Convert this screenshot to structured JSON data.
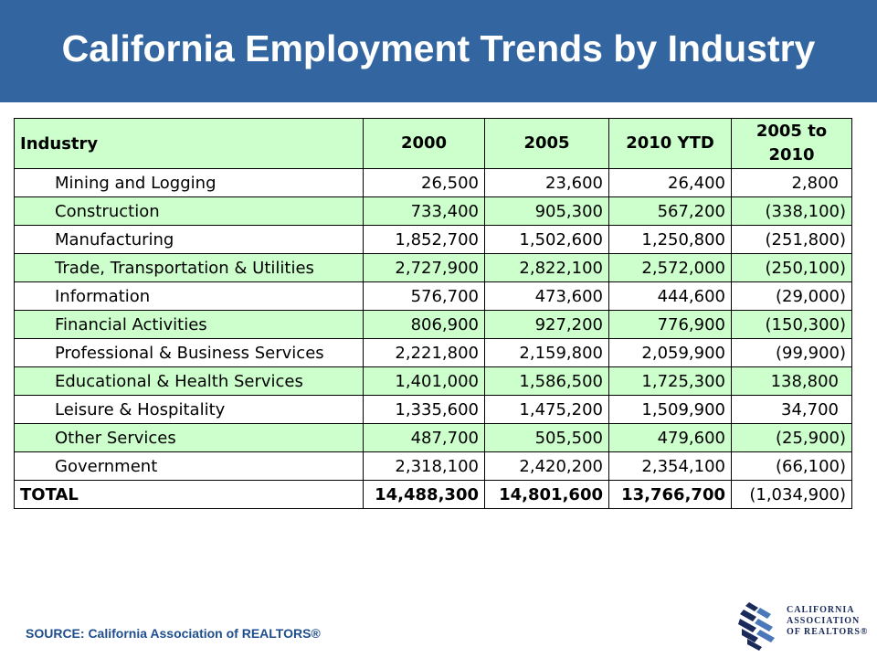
{
  "title": "California Employment Trends by Industry",
  "table": {
    "headers": {
      "industry": "Industry",
      "y2000": "2000",
      "y2005": "2005",
      "y2010": "2010 YTD",
      "change_line1": "2005 to",
      "change_line2": "2010"
    },
    "rows": [
      {
        "industry": "Mining and Logging",
        "y2000": "26,500",
        "y2005": "23,600",
        "y2010": "26,400",
        "change": "2,800"
      },
      {
        "industry": "Construction",
        "y2000": "733,400",
        "y2005": "905,300",
        "y2010": "567,200",
        "change": "(338,100)"
      },
      {
        "industry": "Manufacturing",
        "y2000": "1,852,700",
        "y2005": "1,502,600",
        "y2010": "1,250,800",
        "change": "(251,800)"
      },
      {
        "industry": "Trade, Transportation & Utilities",
        "y2000": "2,727,900",
        "y2005": "2,822,100",
        "y2010": "2,572,000",
        "change": "(250,100)"
      },
      {
        "industry": "Information",
        "y2000": "576,700",
        "y2005": "473,600",
        "y2010": "444,600",
        "change": "(29,000)"
      },
      {
        "industry": "Financial Activities",
        "y2000": "806,900",
        "y2005": "927,200",
        "y2010": "776,900",
        "change": "(150,300)"
      },
      {
        "industry": "Professional & Business Services",
        "y2000": "2,221,800",
        "y2005": "2,159,800",
        "y2010": "2,059,900",
        "change": "(99,900)"
      },
      {
        "industry": "Educational & Health Services",
        "y2000": "1,401,000",
        "y2005": "1,586,500",
        "y2010": "1,725,300",
        "change": "138,800"
      },
      {
        "industry": "Leisure & Hospitality",
        "y2000": "1,335,600",
        "y2005": "1,475,200",
        "y2010": "1,509,900",
        "change": "34,700"
      },
      {
        "industry": "Other Services",
        "y2000": "487,700",
        "y2005": "505,500",
        "y2010": "479,600",
        "change": "(25,900)"
      },
      {
        "industry": "Government",
        "y2000": "2,318,100",
        "y2005": "2,420,200",
        "y2010": "2,354,100",
        "change": "(66,100)"
      }
    ],
    "total": {
      "industry": "TOTAL",
      "y2000": "14,488,300",
      "y2005": "14,801,600",
      "y2010": "13,766,700",
      "change": "(1,034,900)"
    }
  },
  "source": "SOURCE: California Association of REALTORS®",
  "logo": {
    "line1": "CALIFORNIA",
    "line2": "ASSOCIATION",
    "line3": "OF REALTORS®"
  },
  "colors": {
    "header_bg": "#3366a0",
    "row_green": "#ccffcc",
    "source_text": "#1f4e8c"
  }
}
